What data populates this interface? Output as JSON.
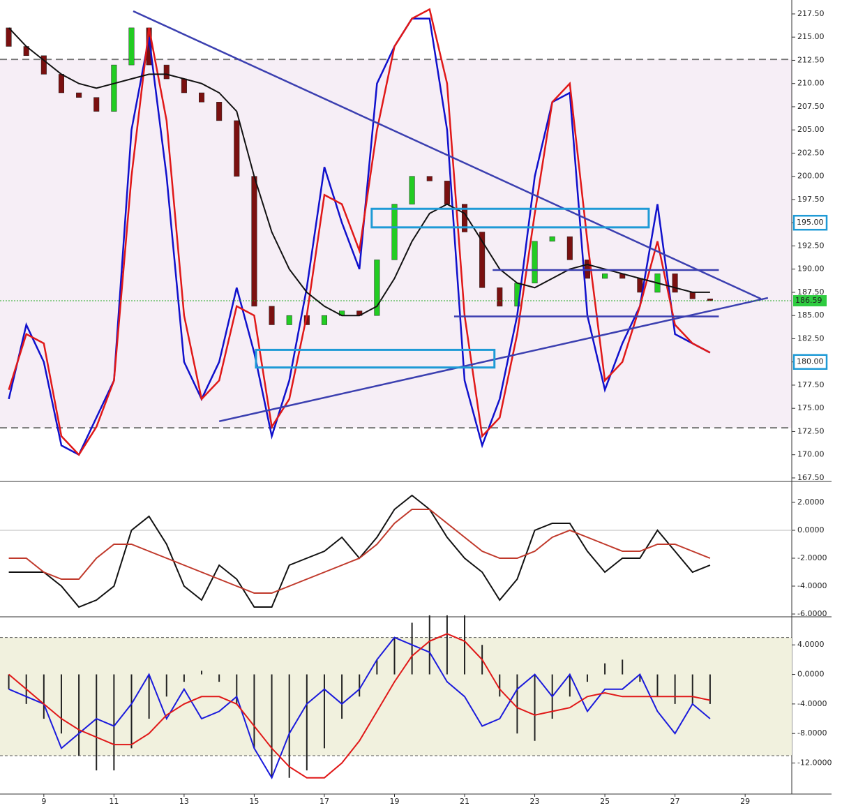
{
  "chart_data": [
    {
      "type": "candlestick",
      "x": [
        8,
        8.5,
        9,
        9.5,
        10,
        10.5,
        11,
        11.5,
        12,
        12.5,
        13,
        13.5,
        14,
        14.5,
        15,
        15.5,
        16,
        16.5,
        17,
        17.5,
        18,
        18.5,
        19,
        19.5,
        20,
        20.5,
        21,
        21.5,
        22,
        22.5,
        23,
        23.5,
        24,
        24.5,
        25,
        25.5,
        26,
        26.5,
        27,
        27.5,
        28
      ],
      "open": [
        216,
        214,
        213,
        211,
        209,
        208.5,
        207,
        212,
        216,
        212,
        210.5,
        209,
        208,
        206,
        200,
        186,
        184,
        185,
        184,
        185,
        185.5,
        185,
        191,
        197,
        200,
        199.5,
        197,
        194,
        188,
        186,
        188.5,
        193,
        193.5,
        191,
        189,
        189.5,
        189,
        187.5,
        189.5,
        187.5,
        186.8
      ],
      "close": [
        214,
        213,
        211,
        209,
        208.5,
        207,
        212,
        216,
        212,
        210.5,
        209,
        208,
        206,
        200,
        186,
        184,
        185,
        184,
        185,
        185.5,
        185,
        191,
        197,
        200,
        199.5,
        197,
        194,
        188,
        186,
        188.5,
        193,
        193.5,
        191,
        189,
        189.5,
        189,
        187.5,
        189.5,
        187.5,
        186.8,
        186.59
      ],
      "up_color": "#22cc22",
      "down_color": "#7a1010",
      "series": [
        {
          "color": "#1010cc",
          "values": [
            176,
            184,
            180,
            171,
            170,
            174,
            178,
            205,
            215,
            200,
            180,
            176,
            180,
            188,
            181,
            172,
            178,
            188,
            201,
            195,
            190,
            210,
            214,
            217,
            217,
            205,
            178,
            171,
            176,
            185,
            200,
            208,
            209,
            185,
            177,
            182,
            186,
            197,
            183,
            182,
            181
          ]
        },
        {
          "color": "#e01818",
          "values": [
            177,
            183,
            182,
            172,
            170,
            173,
            178,
            200,
            216,
            206,
            185,
            176,
            178,
            186,
            185,
            173,
            176,
            185,
            198,
            197,
            192,
            205,
            214,
            217,
            218,
            210,
            185,
            172,
            174,
            183,
            196,
            208,
            210,
            193,
            178,
            180,
            186,
            193,
            184,
            182,
            181
          ]
        },
        {
          "color": "#111111",
          "values": [
            216,
            214,
            212.5,
            211,
            210,
            209.5,
            210,
            210.5,
            211,
            211,
            210.5,
            210,
            209,
            207,
            200,
            194,
            190,
            187.5,
            186,
            185,
            185,
            186,
            189,
            193,
            196,
            197,
            196,
            193,
            190,
            188.5,
            188,
            189,
            190,
            190.5,
            190,
            189.5,
            189,
            188.5,
            188,
            187.5,
            187.5
          ]
        }
      ],
      "xlim": [
        7.75,
        30.33
      ],
      "ylim": [
        167.12,
        219.0
      ],
      "yticks": [
        {
          "value": 167.5,
          "label": "167.50"
        },
        {
          "value": 170,
          "label": "170.00"
        },
        {
          "value": 172.5,
          "label": "172.50"
        },
        {
          "value": 175,
          "label": "175.00"
        },
        {
          "value": 177.5,
          "label": "177.50"
        },
        {
          "value": 180,
          "label": "180.00"
        },
        {
          "value": 182.5,
          "label": "182.50"
        },
        {
          "value": 185,
          "label": "185.00"
        },
        {
          "value": 187.5,
          "label": "187.50"
        },
        {
          "value": 190,
          "label": "190.00"
        },
        {
          "value": 192.5,
          "label": "192.50"
        },
        {
          "value": 195,
          "label": "195.00"
        },
        {
          "value": 197.5,
          "label": "197.50"
        },
        {
          "value": 200,
          "label": "200.00"
        },
        {
          "value": 202.5,
          "label": "202.50"
        },
        {
          "value": 205,
          "label": "205.00"
        },
        {
          "value": 207.5,
          "label": "207.50"
        },
        {
          "value": 210,
          "label": "210.00"
        },
        {
          "value": 212.5,
          "label": "212.50"
        },
        {
          "value": 215,
          "label": "215.00"
        },
        {
          "value": 217.5,
          "label": "217.50"
        }
      ],
      "hlines": [
        212.6,
        172.9
      ],
      "trendlines": [
        [
          11.55,
          217.8,
          29.45,
          186.8
        ],
        [
          14.0,
          173.6,
          29.65,
          186.9
        ],
        [
          21.8,
          189.9,
          28.25,
          189.9
        ],
        [
          20.7,
          184.9,
          28.25,
          184.9
        ]
      ],
      "trend_color": "#3b3fb0",
      "boxes": [
        [
          18.35,
          26.25,
          196.5,
          194.5
        ],
        [
          15.05,
          21.85,
          181.3,
          179.4
        ]
      ],
      "box_color": "#1e9ad6",
      "price_label": {
        "value": 186.59,
        "label": "186.59"
      },
      "markers": [
        {
          "value": 195,
          "label": "195.00"
        },
        {
          "value": 180,
          "label": "180.00"
        }
      ]
    },
    {
      "type": "line",
      "x": [
        8,
        8.5,
        9,
        9.5,
        10,
        10.5,
        11,
        11.5,
        12,
        12.5,
        13,
        13.5,
        14,
        14.5,
        15,
        15.5,
        16,
        16.5,
        17,
        17.5,
        18,
        18.5,
        19,
        19.5,
        20,
        20.5,
        21,
        21.5,
        22,
        22.5,
        23,
        23.5,
        24,
        24.5,
        25,
        25.5,
        26,
        26.5,
        27,
        27.5,
        28
      ],
      "series": [
        {
          "color": "#111111",
          "values": [
            -3,
            -3,
            -3,
            -4,
            -5.5,
            -5,
            -4,
            0,
            1,
            -1,
            -4,
            -5,
            -2.5,
            -3.5,
            -5.5,
            -5.5,
            -2.5,
            -2,
            -1.5,
            -0.5,
            -2,
            -0.5,
            1.5,
            2.5,
            1.5,
            -0.5,
            -2,
            -3,
            -5,
            -3.5,
            0,
            0.5,
            0.5,
            -1.5,
            -3,
            -2,
            -2,
            0,
            -1.5,
            -3,
            -2.5
          ]
        },
        {
          "color": "#c0392b",
          "values": [
            -2,
            -2,
            -3,
            -3.5,
            -3.5,
            -2,
            -1,
            -1,
            -1.5,
            -2,
            -2.5,
            -3,
            -3.5,
            -4,
            -4.5,
            -4.5,
            -4,
            -3.5,
            -3,
            -2.5,
            -2,
            -1,
            0.5,
            1.5,
            1.5,
            0.5,
            -0.5,
            -1.5,
            -2,
            -2,
            -1.5,
            -0.5,
            0,
            -0.5,
            -1,
            -1.5,
            -1.5,
            -1,
            -1,
            -1.5,
            -2
          ]
        }
      ],
      "xlim": [
        7.75,
        30.33
      ],
      "ylim": [
        -6.2,
        3.5
      ],
      "yticks": [
        {
          "value": 2,
          "label": "2.0000"
        },
        {
          "value": 0,
          "label": "0.0000"
        },
        {
          "value": -2,
          "label": "-2.0000"
        },
        {
          "value": -4,
          "label": "-4.0000"
        },
        {
          "value": -6,
          "label": "-6.0000"
        }
      ]
    },
    {
      "type": "bar",
      "x": [
        8,
        8.5,
        9,
        9.5,
        10,
        10.5,
        11,
        11.5,
        12,
        12.5,
        13,
        13.5,
        14,
        14.5,
        15,
        15.5,
        16,
        16.5,
        17,
        17.5,
        18,
        18.5,
        19,
        19.5,
        20,
        20.5,
        21,
        21.5,
        22,
        22.5,
        23,
        23.5,
        24,
        24.5,
        25,
        25.5,
        26,
        26.5,
        27,
        27.5,
        28
      ],
      "values": [
        -2,
        -4,
        -6,
        -8,
        -11,
        -13,
        -13,
        -10,
        -6,
        -3,
        -1,
        0.5,
        -1,
        -4,
        -10,
        -14,
        -14,
        -13,
        -10,
        -6,
        -3,
        2,
        5,
        7,
        8,
        8,
        8,
        4,
        -3,
        -8,
        -9,
        -6,
        -3,
        -1,
        1.5,
        2,
        -1,
        -3,
        -4,
        -4,
        -4
      ],
      "color": "#222222",
      "series": [
        {
          "color": "#1a1adc",
          "values": [
            -2,
            -3,
            -4,
            -10,
            -8,
            -6,
            -7,
            -4,
            0,
            -6,
            -2,
            -6,
            -5,
            -3,
            -10,
            -14,
            -8,
            -4,
            -2,
            -4,
            -2,
            2,
            5,
            4,
            3,
            -1,
            -3,
            -7,
            -6,
            -2,
            0,
            -3,
            0,
            -5,
            -2,
            -2,
            0,
            -5,
            -8,
            -4,
            -6
          ]
        },
        {
          "color": "#e01818",
          "values": [
            0,
            -2,
            -4,
            -6,
            -7.5,
            -8.5,
            -9.5,
            -9.5,
            -8,
            -5.5,
            -4,
            -3,
            -3,
            -4,
            -7,
            -10,
            -12.5,
            -14,
            -14,
            -12,
            -9,
            -5,
            -1,
            2.5,
            4.5,
            5.5,
            4.5,
            2,
            -2,
            -4.5,
            -5.5,
            -5,
            -4.5,
            -3,
            -2.5,
            -3,
            -3,
            -3,
            -3,
            -3,
            -3.5
          ]
        }
      ],
      "hlines": [
        5,
        -11
      ],
      "xlim": [
        7.75,
        30.33
      ],
      "ylim": [
        -16.2,
        7.8
      ],
      "yticks": [
        {
          "value": 4,
          "label": "4.0000"
        },
        {
          "value": 0,
          "label": "0.0000"
        },
        {
          "value": -4,
          "label": "-4.0000"
        },
        {
          "value": -8,
          "label": "-8.0000"
        },
        {
          "value": -12,
          "label": "-12.0000"
        }
      ],
      "xticks": [
        9,
        11,
        13,
        15,
        17,
        19,
        21,
        23,
        25,
        27,
        29
      ]
    }
  ]
}
